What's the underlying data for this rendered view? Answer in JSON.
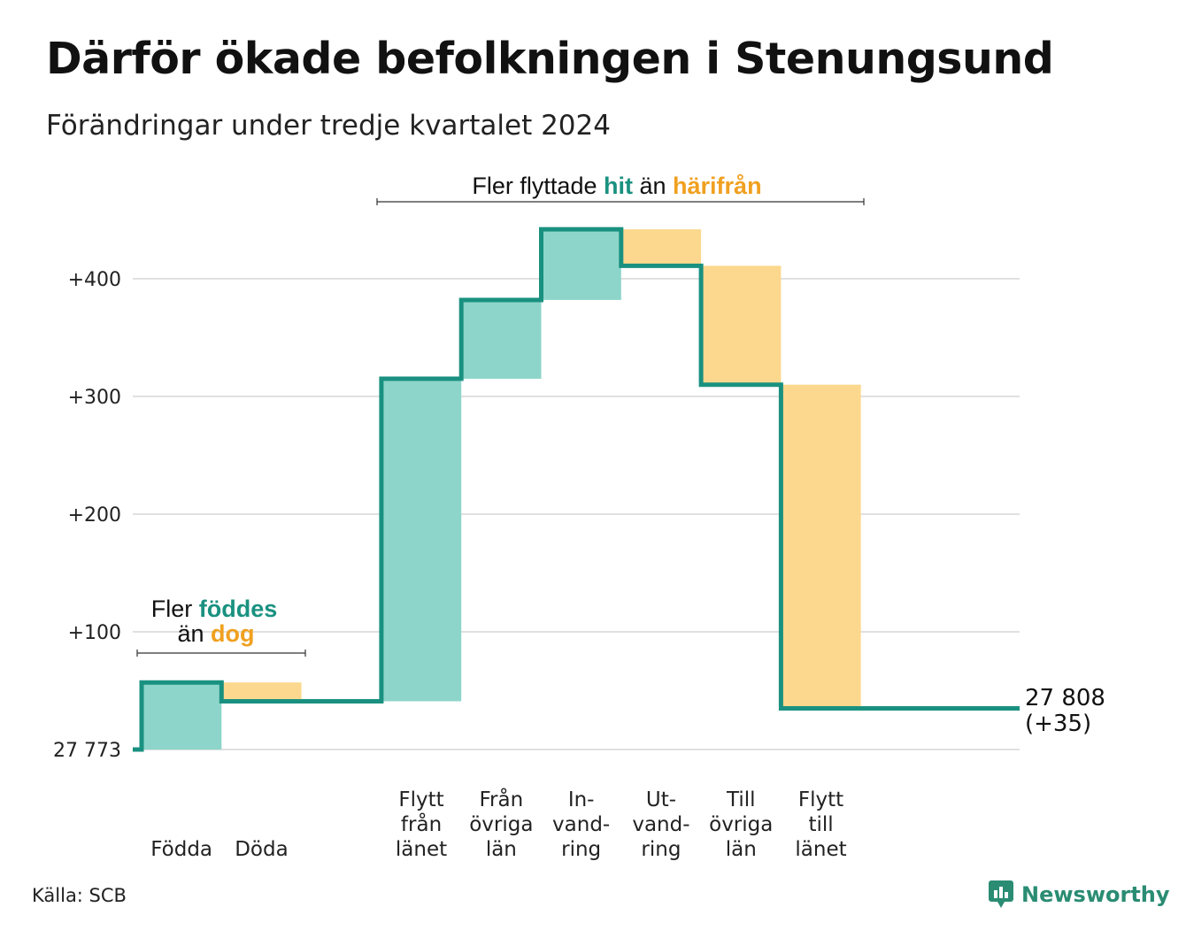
{
  "title": "Därför ökade befolkningen i Stenungsund",
  "subtitle": "Förändringar under tredje kvartalet 2024",
  "source": "Källa: SCB",
  "brand": {
    "name": "Newsworthy",
    "icon": "newsworthy-logo-icon"
  },
  "colors": {
    "increase": "#8dd5ca",
    "decrease": "#fcd88e",
    "line": "#1a9180",
    "hit": "#1a9180",
    "harifran": "#f0a020",
    "grid": "#e0e0e0"
  },
  "annotations": {
    "births": {
      "line1_pre": "Fler ",
      "line1_hi": "föddes",
      "line2_pre": "än ",
      "line2_hi": "dog"
    },
    "moves": {
      "pre": "Fler flyttade ",
      "hi1": "hit",
      "mid": " än ",
      "hi2": "härifrån"
    }
  },
  "end_label": {
    "line1": "27 808",
    "line2": "(+35)"
  },
  "chart_data": {
    "type": "waterfall",
    "title": "Därför ökade befolkningen i Stenungsund",
    "subtitle": "Förändringar under tredje kvartalet 2024",
    "base_label": "27 773",
    "base_value": 27773,
    "end_value": 27808,
    "net_change": 35,
    "y_tick_labels": [
      "27 773",
      "+100",
      "+200",
      "+300",
      "+400"
    ],
    "y_ticks": [
      0,
      100,
      200,
      300,
      400
    ],
    "ylim": [
      0,
      440
    ],
    "grid": true,
    "categories": [
      {
        "label_lines": [
          "Födda"
        ],
        "value": 57
      },
      {
        "label_lines": [
          "Döda"
        ],
        "value": -16
      },
      {
        "label_lines": [],
        "value": 0
      },
      {
        "label_lines": [
          "Flytt",
          "från",
          "länet"
        ],
        "value": 274
      },
      {
        "label_lines": [
          "Från",
          "övriga",
          "län"
        ],
        "value": 67
      },
      {
        "label_lines": [
          "In-",
          "vand-",
          "ring"
        ],
        "value": 60
      },
      {
        "label_lines": [
          "Ut-",
          "vand-",
          "ring"
        ],
        "value": -31
      },
      {
        "label_lines": [
          "Till",
          "övriga",
          "län"
        ],
        "value": -101
      },
      {
        "label_lines": [
          "Flytt",
          "till",
          "länet"
        ],
        "value": -275
      },
      {
        "label_lines": [],
        "value": 0
      },
      {
        "label_lines": [],
        "value": 0
      }
    ]
  }
}
